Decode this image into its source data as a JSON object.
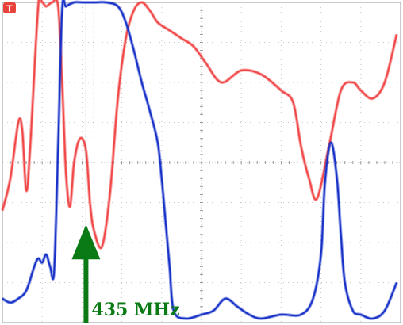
{
  "chart_data": {
    "type": "line",
    "title": "",
    "xlabel": "",
    "ylabel": "",
    "xlim": [
      0,
      10
    ],
    "ylim": [
      0,
      8
    ],
    "grid": true,
    "grid_divisions": {
      "x": 10,
      "y": 8
    },
    "trigger_badge": "T",
    "marker": {
      "label": "435 MHz",
      "x": 2.1,
      "color": "#0a7a14"
    },
    "series": [
      {
        "color": "#f04848",
        "x": [
          0.0,
          0.2,
          0.4,
          0.5,
          0.6,
          0.7,
          0.9,
          1.0,
          1.1,
          1.25,
          1.4,
          1.5,
          1.6,
          1.7,
          1.8,
          1.95,
          2.1,
          2.2,
          2.3,
          2.5,
          2.7,
          2.9,
          3.1,
          3.3,
          3.5,
          3.7,
          3.9,
          4.2,
          4.5,
          4.8,
          5.1,
          5.5,
          6.0,
          6.5,
          7.0,
          7.3,
          7.5,
          7.7,
          7.9,
          8.2,
          8.5,
          8.8,
          9.0,
          9.3,
          9.6,
          9.9
        ],
        "y": [
          2.8,
          3.6,
          5.0,
          4.8,
          3.3,
          4.4,
          7.9,
          8.0,
          7.9,
          8.0,
          7.9,
          6.0,
          3.7,
          2.9,
          4.0,
          4.6,
          4.3,
          3.0,
          2.3,
          1.9,
          3.2,
          5.6,
          7.1,
          7.8,
          8.0,
          7.8,
          7.5,
          7.3,
          7.1,
          6.9,
          6.5,
          6.0,
          6.3,
          6.2,
          5.8,
          5.5,
          4.4,
          3.6,
          3.1,
          4.4,
          5.8,
          6.0,
          5.8,
          5.6,
          6.0,
          7.2
        ]
      },
      {
        "color": "#1832c8",
        "x": [
          0.0,
          0.2,
          0.4,
          0.6,
          0.8,
          0.9,
          1.0,
          1.1,
          1.2,
          1.3,
          1.4,
          1.5,
          1.6,
          1.8,
          2.0,
          2.3,
          2.6,
          2.9,
          3.1,
          3.3,
          3.5,
          3.7,
          3.9,
          4.0,
          4.1,
          4.2,
          4.3,
          4.6,
          5.0,
          5.3,
          5.6,
          5.9,
          6.2,
          6.5,
          7.0,
          7.5,
          7.8,
          8.0,
          8.1,
          8.25,
          8.4,
          8.5,
          8.6,
          8.8,
          9.0,
          9.3,
          9.6,
          9.9
        ],
        "y": [
          0.6,
          0.5,
          0.6,
          0.8,
          1.4,
          1.6,
          1.5,
          1.7,
          1.4,
          1.3,
          4.4,
          7.8,
          7.9,
          8.0,
          8.0,
          8.0,
          8.0,
          7.9,
          7.5,
          6.8,
          6.0,
          5.3,
          4.5,
          3.6,
          2.5,
          1.4,
          0.3,
          0.1,
          0.2,
          0.3,
          0.6,
          0.4,
          0.2,
          0.1,
          0.2,
          0.2,
          0.6,
          1.7,
          3.5,
          4.5,
          3.6,
          2.2,
          1.0,
          0.3,
          0.2,
          0.1,
          0.3,
          1.0
        ]
      }
    ]
  }
}
